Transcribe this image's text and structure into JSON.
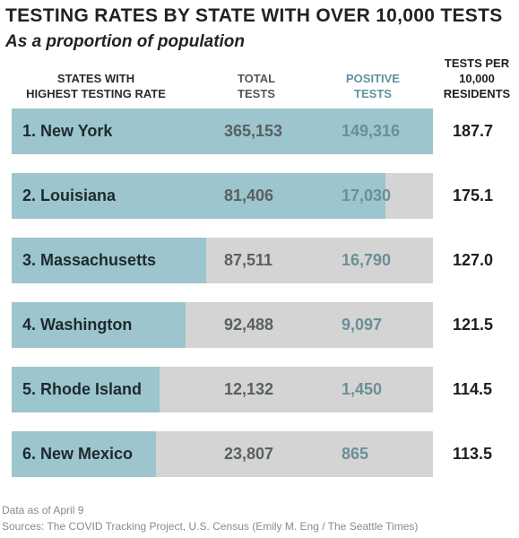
{
  "header": {
    "title": "TESTING RATES BY STATE WITH OVER 10,000 TESTS",
    "subtitle": "As a proportion of population"
  },
  "columns": {
    "state": [
      "STATES WITH",
      "HIGHEST TESTING RATE"
    ],
    "total": [
      "TOTAL",
      "TESTS"
    ],
    "positive": [
      "POSITIVE",
      "TESTS"
    ],
    "rate": [
      "TESTS PER",
      "10,000",
      "RESIDENTS"
    ]
  },
  "footer": {
    "note": "Data as of April 9",
    "sources": "Sources: The COVID Tracking Project, U.S. Census (Emily M. Eng / The Seattle Times)"
  },
  "colors": {
    "bar_fill": "#9cc5cd",
    "bar_background": "#d4d4d4",
    "positive_header": "#5b93a1"
  },
  "chart_data": {
    "type": "table",
    "title": "TESTING RATES BY STATE WITH OVER 10,000 TESTS",
    "subtitle": "As a proportion of population",
    "bar_column": "tests_per_10000",
    "bar_max": 187.7,
    "rows": [
      {
        "label": "1. New York",
        "state": "New York",
        "total_tests": "365,153",
        "positive_tests": "149,316",
        "tests_per_10000": "187.7",
        "rate_value": 187.7
      },
      {
        "label": "2. Louisiana",
        "state": "Louisiana",
        "total_tests": "81,406",
        "positive_tests": "17,030",
        "tests_per_10000": "175.1",
        "rate_value": 175.1
      },
      {
        "label": "3. Massachusetts",
        "state": "Massachusetts",
        "total_tests": "87,511",
        "positive_tests": "16,790",
        "tests_per_10000": "127.0",
        "rate_value": 127.0
      },
      {
        "label": "4. Washington",
        "state": "Washington",
        "total_tests": "92,488",
        "positive_tests": "9,097",
        "tests_per_10000": "121.5",
        "rate_value": 121.5
      },
      {
        "label": "5. Rhode Island",
        "state": "Rhode Island",
        "total_tests": "12,132",
        "positive_tests": "1,450",
        "tests_per_10000": "114.5",
        "rate_value": 114.5
      },
      {
        "label": "6. New Mexico",
        "state": "New Mexico",
        "total_tests": "23,807",
        "positive_tests": "865",
        "tests_per_10000": "113.5",
        "rate_value": 113.5
      }
    ]
  }
}
